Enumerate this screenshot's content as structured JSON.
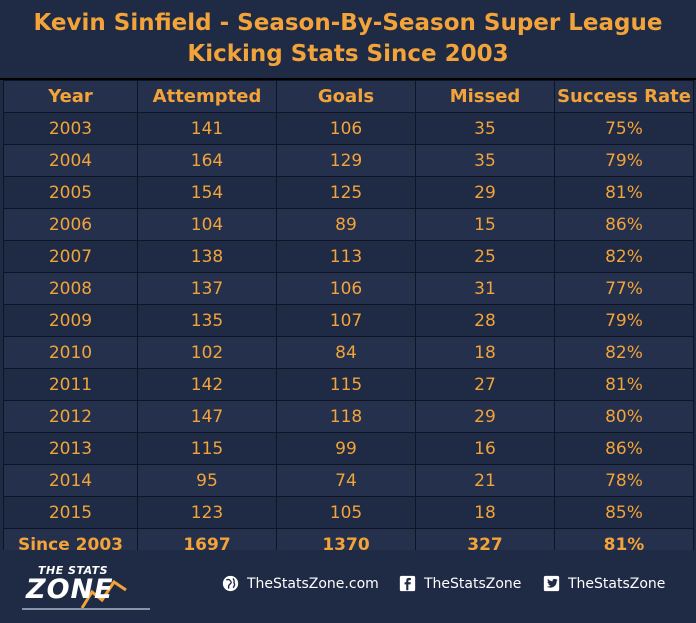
{
  "title": {
    "line1": "Kevin Sinfield - Season-By-Season Super League",
    "line2": "Kicking Stats Since 2003"
  },
  "colors": {
    "background": "#1f2a44",
    "text_accent": "#f2a33a",
    "footer_text": "#ffffff"
  },
  "chart_data": {
    "type": "table",
    "title": "Kevin Sinfield - Season-By-Season Super League Kicking Stats Since 2003",
    "columns": [
      "Year",
      "Attempted",
      "Goals",
      "Missed",
      "Success Rate"
    ],
    "rows": [
      [
        "2003",
        "141",
        "106",
        "35",
        "75%"
      ],
      [
        "2004",
        "164",
        "129",
        "35",
        "79%"
      ],
      [
        "2005",
        "154",
        "125",
        "29",
        "81%"
      ],
      [
        "2006",
        "104",
        "89",
        "15",
        "86%"
      ],
      [
        "2007",
        "138",
        "113",
        "25",
        "82%"
      ],
      [
        "2008",
        "137",
        "106",
        "31",
        "77%"
      ],
      [
        "2009",
        "135",
        "107",
        "28",
        "79%"
      ],
      [
        "2010",
        "102",
        "84",
        "18",
        "82%"
      ],
      [
        "2011",
        "142",
        "115",
        "27",
        "81%"
      ],
      [
        "2012",
        "147",
        "118",
        "29",
        "80%"
      ],
      [
        "2013",
        "115",
        "99",
        "16",
        "86%"
      ],
      [
        "2014",
        "95",
        "74",
        "21",
        "78%"
      ],
      [
        "2015",
        "123",
        "105",
        "18",
        "85%"
      ]
    ],
    "total": [
      "Since 2003",
      "1697",
      "1370",
      "327",
      "81%"
    ]
  },
  "footer": {
    "logo_small": "THE STATS",
    "logo_big": "ZONE",
    "website": "TheStatsZone.com",
    "facebook": "TheStatsZone",
    "twitter": "TheStatsZone",
    "icons": [
      "globe-icon",
      "facebook-icon",
      "twitter-icon"
    ]
  }
}
